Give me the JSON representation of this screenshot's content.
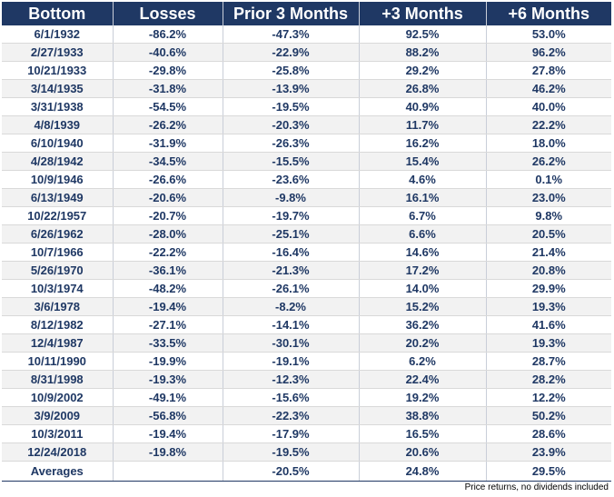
{
  "chart_data": {
    "type": "table",
    "columns": [
      "Bottom",
      "Losses",
      "Prior 3 Months",
      "+3 Months",
      "+6 Months"
    ],
    "rows": [
      [
        "6/1/1932",
        "-86.2%",
        "-47.3%",
        "92.5%",
        "53.0%"
      ],
      [
        "2/27/1933",
        "-40.6%",
        "-22.9%",
        "88.2%",
        "96.2%"
      ],
      [
        "10/21/1933",
        "-29.8%",
        "-25.8%",
        "29.2%",
        "27.8%"
      ],
      [
        "3/14/1935",
        "-31.8%",
        "-13.9%",
        "26.8%",
        "46.2%"
      ],
      [
        "3/31/1938",
        "-54.5%",
        "-19.5%",
        "40.9%",
        "40.0%"
      ],
      [
        "4/8/1939",
        "-26.2%",
        "-20.3%",
        "11.7%",
        "22.2%"
      ],
      [
        "6/10/1940",
        "-31.9%",
        "-26.3%",
        "16.2%",
        "18.0%"
      ],
      [
        "4/28/1942",
        "-34.5%",
        "-15.5%",
        "15.4%",
        "26.2%"
      ],
      [
        "10/9/1946",
        "-26.6%",
        "-23.6%",
        "4.6%",
        "0.1%"
      ],
      [
        "6/13/1949",
        "-20.6%",
        "-9.8%",
        "16.1%",
        "23.0%"
      ],
      [
        "10/22/1957",
        "-20.7%",
        "-19.7%",
        "6.7%",
        "9.8%"
      ],
      [
        "6/26/1962",
        "-28.0%",
        "-25.1%",
        "6.6%",
        "20.5%"
      ],
      [
        "10/7/1966",
        "-22.2%",
        "-16.4%",
        "14.6%",
        "21.4%"
      ],
      [
        "5/26/1970",
        "-36.1%",
        "-21.3%",
        "17.2%",
        "20.8%"
      ],
      [
        "10/3/1974",
        "-48.2%",
        "-26.1%",
        "14.0%",
        "29.9%"
      ],
      [
        "3/6/1978",
        "-19.4%",
        "-8.2%",
        "15.2%",
        "19.3%"
      ],
      [
        "8/12/1982",
        "-27.1%",
        "-14.1%",
        "36.2%",
        "41.6%"
      ],
      [
        "12/4/1987",
        "-33.5%",
        "-30.1%",
        "20.2%",
        "19.3%"
      ],
      [
        "10/11/1990",
        "-19.9%",
        "-19.1%",
        "6.2%",
        "28.7%"
      ],
      [
        "8/31/1998",
        "-19.3%",
        "-12.3%",
        "22.4%",
        "28.2%"
      ],
      [
        "10/9/2002",
        "-49.1%",
        "-15.6%",
        "19.2%",
        "12.2%"
      ],
      [
        "3/9/2009",
        "-56.8%",
        "-22.3%",
        "38.8%",
        "50.2%"
      ],
      [
        "10/3/2011",
        "-19.4%",
        "-17.9%",
        "16.5%",
        "28.6%"
      ],
      [
        "12/24/2018",
        "-19.8%",
        "-19.5%",
        "20.6%",
        "23.9%"
      ]
    ],
    "averages": [
      "Averages",
      "",
      "-20.5%",
      "24.8%",
      "29.5%"
    ],
    "footnote": "Price returns, no dividends included"
  },
  "colors": {
    "header_bg": "#1f3864",
    "header_text": "#ffffff",
    "cell_text": "#1f3864",
    "stripe": "#f2f2f2"
  }
}
